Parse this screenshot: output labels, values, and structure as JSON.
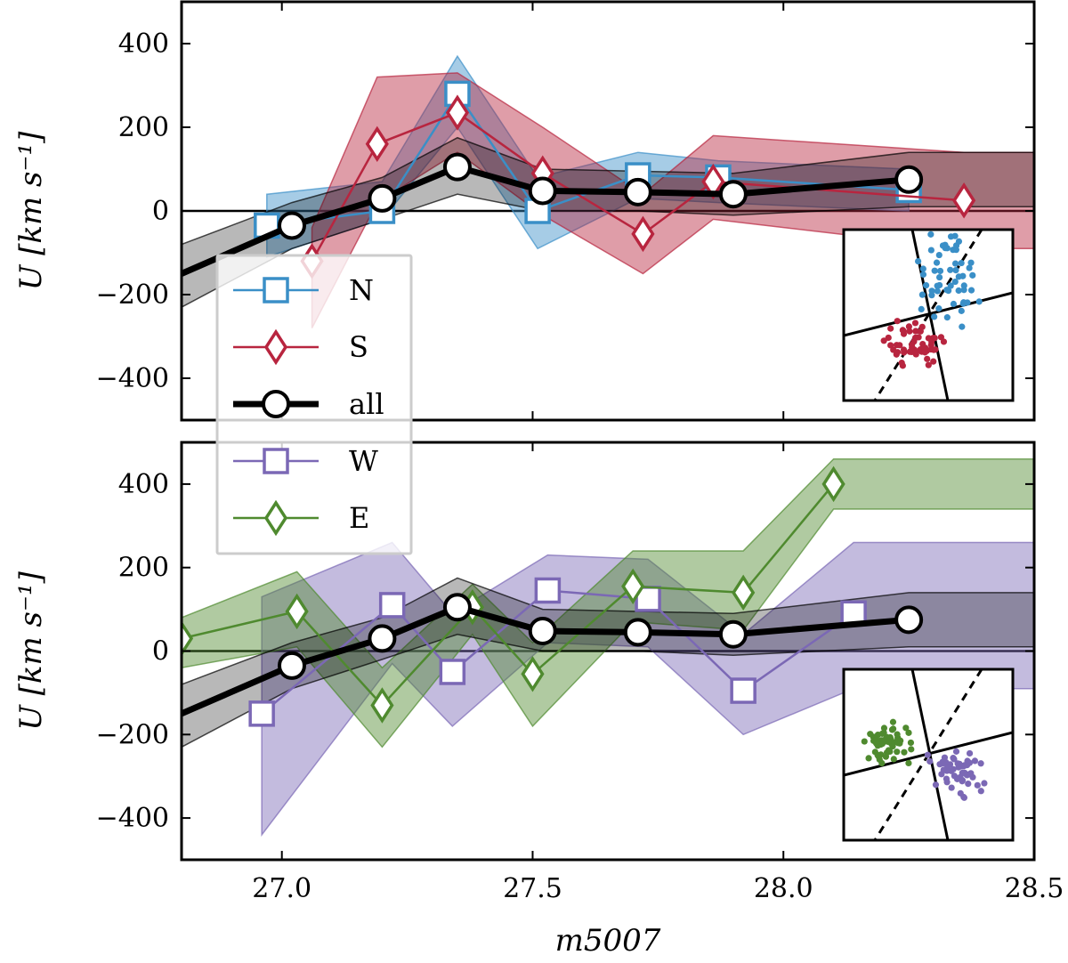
{
  "chart_data": [
    {
      "type": "line",
      "panel": "top",
      "ylabel": "U [km s⁻¹]",
      "xlabel": "",
      "xlim": [
        26.8,
        28.5
      ],
      "ylim": [
        -500,
        500
      ],
      "yticks": [
        -400,
        -200,
        0,
        200,
        400
      ],
      "ytick_labels": [
        "−400",
        "−200",
        "0",
        "200",
        "400"
      ],
      "series": [
        {
          "name": "N",
          "key": "N",
          "color": "#3a8fc7",
          "marker": "square",
          "x": [
            26.97,
            27.2,
            27.35,
            27.51,
            27.71,
            27.87,
            28.25
          ],
          "y": [
            -35,
            0,
            280,
            0,
            85,
            80,
            50
          ],
          "upper": [
            40,
            70,
            370,
            80,
            140,
            120,
            100
          ],
          "lower": [
            -110,
            -20,
            200,
            -90,
            30,
            20,
            0
          ]
        },
        {
          "name": "S",
          "key": "S",
          "color": "#b8253f",
          "marker": "diamond",
          "x": [
            27.06,
            27.19,
            27.35,
            27.52,
            27.72,
            27.86,
            28.36
          ],
          "y": [
            -120,
            160,
            235,
            90,
            -55,
            70,
            25
          ],
          "upper": [
            -40,
            320,
            330,
            200,
            40,
            180,
            140
          ],
          "lower": [
            -280,
            20,
            140,
            -10,
            -150,
            -20,
            -90
          ]
        },
        {
          "name": "all",
          "key": "all",
          "color": "#000000",
          "marker": "circle",
          "x": [
            26.8,
            27.02,
            27.2,
            27.35,
            27.52,
            27.71,
            27.9,
            28.25
          ],
          "y": [
            -150,
            -35,
            30,
            105,
            48,
            45,
            40,
            75
          ],
          "upper": [
            -80,
            20,
            80,
            175,
            100,
            95,
            90,
            140
          ],
          "lower": [
            -230,
            -90,
            -20,
            40,
            0,
            0,
            -10,
            10
          ]
        }
      ]
    },
    {
      "type": "line",
      "panel": "bottom",
      "ylabel": "U [km s⁻¹]",
      "xlabel": "m5007",
      "xlim": [
        26.8,
        28.5
      ],
      "ylim": [
        -500,
        500
      ],
      "yticks": [
        -400,
        -200,
        0,
        200,
        400
      ],
      "ytick_labels": [
        "−400",
        "−200",
        "0",
        "200",
        "400"
      ],
      "xticks": [
        27.0,
        27.5,
        28.0,
        28.5
      ],
      "xtick_labels": [
        "27.0",
        "27.5",
        "28.0",
        "28.5"
      ],
      "series": [
        {
          "name": "W",
          "key": "W",
          "color": "#7b68b5",
          "marker": "square",
          "x": [
            26.96,
            27.22,
            27.34,
            27.53,
            27.73,
            27.92,
            28.14
          ],
          "y": [
            -150,
            110,
            -50,
            145,
            125,
            -95,
            90
          ],
          "upper": [
            130,
            260,
            90,
            230,
            220,
            40,
            260
          ],
          "lower": [
            -440,
            -30,
            -180,
            20,
            10,
            -200,
            -90
          ]
        },
        {
          "name": "E",
          "key": "E",
          "color": "#4f8a2f",
          "marker": "diamond",
          "x": [
            26.8,
            27.03,
            27.2,
            27.38,
            27.5,
            27.7,
            27.92,
            28.1
          ],
          "y": [
            30,
            95,
            -130,
            105,
            -55,
            155,
            140,
            400
          ],
          "upper": [
            80,
            190,
            -40,
            160,
            20,
            240,
            240,
            460
          ],
          "lower": [
            -40,
            10,
            -230,
            40,
            -180,
            70,
            50,
            340
          ]
        },
        {
          "name": "all",
          "key": "all",
          "color": "#000000",
          "marker": "circle",
          "x": [
            26.8,
            27.02,
            27.2,
            27.35,
            27.52,
            27.71,
            27.9,
            28.25
          ],
          "y": [
            -150,
            -35,
            30,
            105,
            48,
            45,
            40,
            75
          ],
          "upper": [
            -80,
            20,
            80,
            175,
            100,
            95,
            90,
            140
          ],
          "lower": [
            -230,
            -90,
            -20,
            40,
            0,
            0,
            -10,
            10
          ]
        }
      ]
    }
  ],
  "legend": [
    {
      "label": "N",
      "color": "#3a8fc7",
      "marker": "square"
    },
    {
      "label": "S",
      "color": "#b8253f",
      "marker": "diamond"
    },
    {
      "label": "all",
      "color": "#000000",
      "marker": "circle"
    },
    {
      "label": "W",
      "color": "#7b68b5",
      "marker": "square"
    },
    {
      "label": "E",
      "color": "#4f8a2f",
      "marker": "diamond"
    }
  ],
  "insets": [
    {
      "panel": "top",
      "groups": [
        {
          "name": "N",
          "color": "#3a8fc7"
        },
        {
          "name": "S",
          "color": "#b8253f"
        }
      ]
    },
    {
      "panel": "bottom",
      "groups": [
        {
          "name": "E",
          "color": "#4f8a2f"
        },
        {
          "name": "W",
          "color": "#7b68b5"
        }
      ]
    }
  ]
}
